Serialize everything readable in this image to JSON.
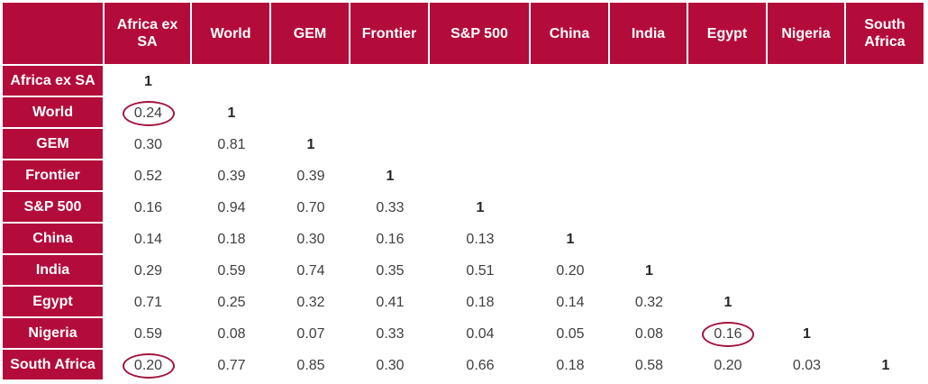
{
  "chart_data": {
    "type": "table",
    "columns": [
      "Africa ex\nSA",
      "World",
      "GEM",
      "Frontier",
      "S&P 500",
      "China",
      "India",
      "Egypt",
      "Nigeria",
      "South\nAfrica"
    ],
    "rows": [
      {
        "label": "Africa ex SA",
        "values": [
          "1"
        ]
      },
      {
        "label": "World",
        "values": [
          "0.24",
          "1"
        ]
      },
      {
        "label": "GEM",
        "values": [
          "0.30",
          "0.81",
          "1"
        ]
      },
      {
        "label": "Frontier",
        "values": [
          "0.52",
          "0.39",
          "0.39",
          "1"
        ]
      },
      {
        "label": "S&P 500",
        "values": [
          "0.16",
          "0.94",
          "0.70",
          "0.33",
          "1"
        ]
      },
      {
        "label": "China",
        "values": [
          "0.14",
          "0.18",
          "0.30",
          "0.16",
          "0.13",
          "1"
        ]
      },
      {
        "label": "India",
        "values": [
          "0.29",
          "0.59",
          "0.74",
          "0.35",
          "0.51",
          "0.20",
          "1"
        ]
      },
      {
        "label": "Egypt",
        "values": [
          "0.71",
          "0.25",
          "0.32",
          "0.41",
          "0.18",
          "0.14",
          "0.32",
          "1"
        ]
      },
      {
        "label": "Nigeria",
        "values": [
          "0.59",
          "0.08",
          "0.07",
          "0.33",
          "0.04",
          "0.05",
          "0.08",
          "0.16",
          "1"
        ]
      },
      {
        "label": "South Africa",
        "values": [
          "0.20",
          "0.77",
          "0.85",
          "0.30",
          "0.66",
          "0.18",
          "0.58",
          "0.20",
          "0.03",
          "1"
        ]
      }
    ],
    "highlighted_cells": [
      {
        "row": "World",
        "column": "Africa ex\nSA"
      },
      {
        "row": "Nigeria",
        "column": "Egypt"
      },
      {
        "row": "South Africa",
        "column": "Africa ex\nSA"
      }
    ]
  },
  "colors": {
    "header_bg": "#b30c3b",
    "header_text": "#ffffff",
    "cell_text": "#404040",
    "highlight_ring": "#a3143c"
  }
}
